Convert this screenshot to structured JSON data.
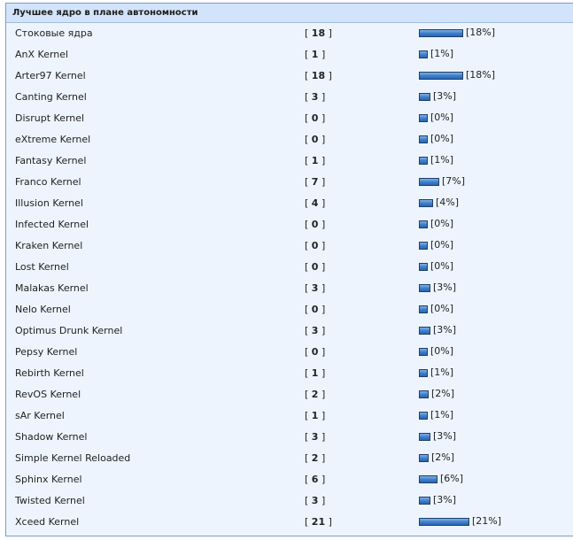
{
  "poll": {
    "title": "Лучшее ядро в плане автономности",
    "options": [
      {
        "label": "Стоковые ядра",
        "votes": "18",
        "percent": 18,
        "percent_label": "[18%]"
      },
      {
        "label": "AnX Kernel",
        "votes": "1",
        "percent": 1,
        "percent_label": "[1%]"
      },
      {
        "label": "Arter97 Kernel",
        "votes": "18",
        "percent": 18,
        "percent_label": "[18%]"
      },
      {
        "label": "Canting Kernel",
        "votes": "3",
        "percent": 3,
        "percent_label": "[3%]"
      },
      {
        "label": "Disrupt Kernel",
        "votes": "0",
        "percent": 0,
        "percent_label": "[0%]"
      },
      {
        "label": "eXtreme Kernel",
        "votes": "0",
        "percent": 0,
        "percent_label": "[0%]"
      },
      {
        "label": "Fantasy Kernel",
        "votes": "1",
        "percent": 1,
        "percent_label": "[1%]"
      },
      {
        "label": "Franco Kernel",
        "votes": "7",
        "percent": 7,
        "percent_label": "[7%]"
      },
      {
        "label": "Illusion Kernel",
        "votes": "4",
        "percent": 4,
        "percent_label": "[4%]"
      },
      {
        "label": "Infected Kernel",
        "votes": "0",
        "percent": 0,
        "percent_label": "[0%]"
      },
      {
        "label": "Kraken Kernel",
        "votes": "0",
        "percent": 0,
        "percent_label": "[0%]"
      },
      {
        "label": "Lost Kernel",
        "votes": "0",
        "percent": 0,
        "percent_label": "[0%]"
      },
      {
        "label": "Malakas Kernel",
        "votes": "3",
        "percent": 3,
        "percent_label": "[3%]"
      },
      {
        "label": "Nelo Kernel",
        "votes": "0",
        "percent": 0,
        "percent_label": "[0%]"
      },
      {
        "label": "Optimus Drunk Kernel",
        "votes": "3",
        "percent": 3,
        "percent_label": "[3%]"
      },
      {
        "label": "Pepsy Kernel",
        "votes": "0",
        "percent": 0,
        "percent_label": "[0%]"
      },
      {
        "label": "Rebirth Kernel",
        "votes": "1",
        "percent": 1,
        "percent_label": "[1%]"
      },
      {
        "label": "RevOS Kernel",
        "votes": "2",
        "percent": 2,
        "percent_label": "[2%]"
      },
      {
        "label": "sAr Kernel",
        "votes": "1",
        "percent": 1,
        "percent_label": "[1%]"
      },
      {
        "label": "Shadow Kernel",
        "votes": "3",
        "percent": 3,
        "percent_label": "[3%]"
      },
      {
        "label": "Simple Kernel Reloaded",
        "votes": "2",
        "percent": 2,
        "percent_label": "[2%]"
      },
      {
        "label": "Sphinx Kernel",
        "votes": "6",
        "percent": 6,
        "percent_label": "[6%]"
      },
      {
        "label": "Twisted Kernel",
        "votes": "3",
        "percent": 3,
        "percent_label": "[3%]"
      },
      {
        "label": "Xceed Kernel",
        "votes": "21",
        "percent": 21,
        "percent_label": "[21%]"
      }
    ]
  },
  "colors": {
    "panel_bg": "#edf4fd",
    "header_bg": "#d2e4fb",
    "border": "#7b9ebd",
    "bar_fill": "#3c7cc9"
  }
}
